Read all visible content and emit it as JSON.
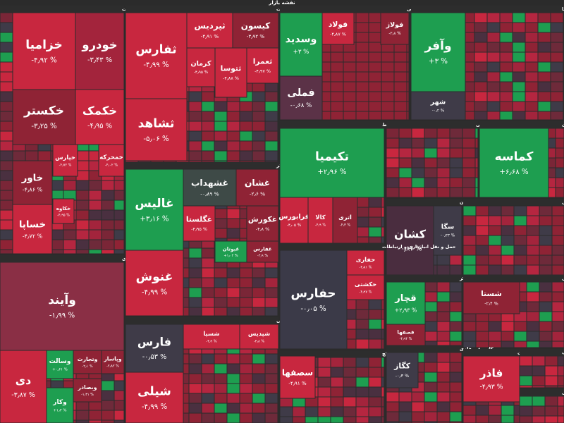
{
  "header": {
    "title": "نقشه بازار"
  },
  "sectors": [
    {
      "title": "خودرو و قطعات",
      "tiles": [
        {
          "name": "خزامیا",
          "change": "-۴٫۹۲ %",
          "color": "#c8273f"
        },
        {
          "name": "خودرو",
          "change": "-۳٫۴۳ %",
          "color": "#a3243c"
        },
        {
          "name": "خکستر",
          "change": "-۳٫۲۵ %",
          "color": "#8f2335"
        },
        {
          "name": "خکمک",
          "change": "-۴٫۹۵ %",
          "color": "#c8273f"
        },
        {
          "name": "خاور",
          "change": "-۴٫۸۶ %",
          "color": "#8f2335"
        },
        {
          "name": "خساپا",
          "change": "-۴٫۷۲ %",
          "color": "#c8273f"
        },
        {
          "name": "خپارس",
          "change": "-۴٫۷۲ %",
          "color": "#c8273f"
        },
        {
          "name": "خمحرکه",
          "change": "-۴٫۰۲ %",
          "color": "#c8273f"
        },
        {
          "name": "خکاوه",
          "change": "-۴٫۹۵ %",
          "color": "#c8273f"
        }
      ]
    },
    {
      "title": "بانکها و موسسات اعتباری",
      "tiles": [
        {
          "name": "وآیند",
          "change": "-۱٫۹۹ %",
          "color": "#8a2f45"
        },
        {
          "name": "دی",
          "change": "-۳٫۸۷ %",
          "color": "#c8273f"
        },
        {
          "name": "وسالت",
          "change": "+۰٫۶۱ %",
          "color": "#1e9e50"
        },
        {
          "name": "وتجارت",
          "change": "-۲٫۱ %",
          "color": "#8f2335"
        },
        {
          "name": "وپاسار",
          "change": "-۲٫۸۲ %",
          "color": "#8f2335"
        },
        {
          "name": "وکار",
          "change": "+۱٫۲ %",
          "color": "#1e9e50"
        },
        {
          "name": "وبصادر",
          "change": "-۱٫۳۱ %",
          "color": "#8f2335"
        }
      ]
    },
    {
      "title": "انبوه سازی املاک و مستغلات",
      "tiles": [
        {
          "name": "ثفارس",
          "change": "-۴٫۹۹ %",
          "color": "#c8273f"
        },
        {
          "name": "ثشاهد",
          "change": "-۵٫۰۶ %",
          "color": "#c8273f"
        },
        {
          "name": "ثپردیس",
          "change": "-۴٫۹۱ %",
          "color": "#c8273f"
        },
        {
          "name": "کیسون",
          "change": "-۳٫۹۲ %",
          "color": "#8f2335"
        },
        {
          "name": "کرمان",
          "change": "-۴٫۹۵ %",
          "color": "#c8273f"
        },
        {
          "name": "ثتوسا",
          "change": "-۴٫۸۸ %",
          "color": "#c8273f"
        },
        {
          "name": "ثعمرا",
          "change": "-۴٫۹۷ %",
          "color": "#c8273f"
        }
      ]
    },
    {
      "title": "غذایی بجز قند و شکر",
      "tiles": [
        {
          "name": "غالیس",
          "change": "+۳٫۱۶ %",
          "color": "#1e9e50"
        },
        {
          "name": "غنوش",
          "change": "-۴٫۹۹ %",
          "color": "#c8273f"
        },
        {
          "name": "غشهداب",
          "change": "-۰٫۸۹ %",
          "color": "#3e4a47"
        },
        {
          "name": "غشان",
          "change": "-۲٫۶ %",
          "color": "#8f2335"
        },
        {
          "name": "غگلستا",
          "change": "-۴٫۹۵ %",
          "color": "#c8273f"
        },
        {
          "name": "غکورش",
          "change": "-۴٫۸ %",
          "color": "#8f2335"
        },
        {
          "name": "غبوتان",
          "change": "+۱٫۰۲ %",
          "color": "#1e9e50"
        },
        {
          "name": "غفارس",
          "change": "-۲٫۹ %",
          "color": "#8f2335"
        }
      ]
    },
    {
      "title": "شیمیایی",
      "tiles": [
        {
          "name": "فارس",
          "change": "-۰٫۵۳ %",
          "color": "#3f3b48"
        },
        {
          "name": "شیلی",
          "change": "-۴٫۹۹ %",
          "color": "#c8273f"
        },
        {
          "name": "شسپا",
          "change": "-۴٫۹ %",
          "color": "#c8273f"
        },
        {
          "name": "شپدیس",
          "change": "-۴٫۸ %",
          "color": "#c8273f"
        }
      ]
    },
    {
      "title": "فلزات اساسی",
      "tiles": [
        {
          "name": "وسدید",
          "change": "+۳ %",
          "color": "#1e9e50"
        },
        {
          "name": "فملی",
          "change": "-۰٫۶۸ %",
          "color": "#5b3247"
        },
        {
          "name": "فولاد",
          "change": "-۴٫۸۷ %",
          "color": "#c8273f"
        },
        {
          "name": "فولاژ",
          "change": "-۳٫۸ %",
          "color": "#8f2335"
        }
      ]
    },
    {
      "title": "سرمایه گذاریها",
      "tiles": [
        {
          "name": "وآفر",
          "change": "+۳ %",
          "color": "#1e9e50"
        },
        {
          "name": "شهر",
          "change": "-۰٫۲ %",
          "color": "#3f3b48"
        }
      ]
    },
    {
      "title": "فعالیتهای کمکی به نهاد های مالی واسط",
      "tiles": [
        {
          "name": "تکیمیا",
          "change": "+۲٫۹۶ %",
          "color": "#1e9e50"
        },
        {
          "name": "فرابورس",
          "change": "-۴٫۰۵ %",
          "color": "#c8273f"
        },
        {
          "name": "کالا",
          "change": "-۴٫۹ %",
          "color": "#c8273f"
        },
        {
          "name": "اتری",
          "change": "-۴٫۳ %",
          "color": "#8f2335"
        }
      ]
    },
    {
      "title": "دارویی",
      "tiles": []
    },
    {
      "title": "استخراج سایر معادن",
      "tiles": [
        {
          "name": "کماسه",
          "change": "+۶٫۶۸ %",
          "color": "#1e9e50"
        }
      ]
    },
    {
      "title": "هتل و رستوران",
      "tiles": [
        {
          "name": "کشان",
          "change": "-۰٫۸۷ %",
          "color": "#4a2d3f"
        },
        {
          "name": "سگا",
          "change": "-۰٫۲۳ %",
          "color": "#3f3b48"
        }
      ]
    },
    {
      "title": "واسطه گریهای مالی و پولی",
      "tiles": []
    },
    {
      "title": "حمل و نقل انبارداری و ارتباطات",
      "tiles": [
        {
          "name": "حفارس",
          "change": "-۰٫۰۵ %",
          "color": "#3b3a48"
        },
        {
          "name": "حفاری",
          "change": "-۴٫۸۱ %",
          "color": "#c8273f"
        },
        {
          "name": "حکشتی",
          "change": "-۴٫۹۷ %",
          "color": "#c8273f"
        }
      ]
    },
    {
      "title": "قند و شکر",
      "tiles": [
        {
          "name": "قچار",
          "change": "+۲٫۹۳ %",
          "color": "#1e9e50"
        },
        {
          "name": "قصفها",
          "change": "-۴٫۹۴ %",
          "color": "#8f2335"
        }
      ]
    },
    {
      "title": "چندرشته ای صنعتی",
      "tiles": [
        {
          "name": "شستا",
          "change": "-۲٫۴ %",
          "color": "#8f2335"
        }
      ]
    },
    {
      "title": "سیمان آهک گچ",
      "tiles": [
        {
          "name": "سصفها",
          "change": "-۴٫۹۱ %",
          "color": "#c8273f"
        }
      ]
    },
    {
      "title": "کانی غیر فلزی",
      "tiles": [
        {
          "name": "کگاز",
          "change": "-۰٫۳ %",
          "color": "#3f3b48"
        }
      ]
    },
    {
      "title": "محصولات فلزی",
      "tiles": [
        {
          "name": "فاذر",
          "change": "-۴٫۹۳ %",
          "color": "#c8273f"
        }
      ]
    },
    {
      "title": "لاستیک و پلاستیک",
      "tiles": []
    },
    {
      "title": "دستگاههای برقی",
      "tiles": []
    }
  ]
}
